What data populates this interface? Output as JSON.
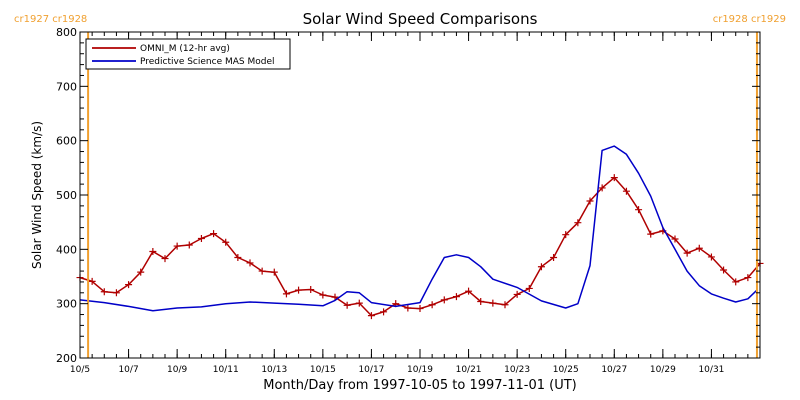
{
  "chart_data": {
    "type": "line",
    "title": "Solar Wind Speed Comparisons",
    "xlabel": "Month/Day from 1997-10-05 to 1997-11-01 (UT)",
    "ylabel": "Solar Wind Speed (km/s)",
    "xlim": [
      "1997-10-05",
      "1997-11-02"
    ],
    "ylim": [
      200,
      800
    ],
    "yticks": [
      200,
      300,
      400,
      500,
      600,
      700,
      800
    ],
    "xticks": [
      {
        "x": "1997-10-05",
        "label": "10/5"
      },
      {
        "x": "1997-10-07",
        "label": "10/7"
      },
      {
        "x": "1997-10-09",
        "label": "10/9"
      },
      {
        "x": "1997-10-11",
        "label": "10/11"
      },
      {
        "x": "1997-10-13",
        "label": "10/13"
      },
      {
        "x": "1997-10-15",
        "label": "10/15"
      },
      {
        "x": "1997-10-17",
        "label": "10/17"
      },
      {
        "x": "1997-10-19",
        "label": "10/19"
      },
      {
        "x": "1997-10-21",
        "label": "10/21"
      },
      {
        "x": "1997-10-23",
        "label": "10/23"
      },
      {
        "x": "1997-10-25",
        "label": "10/25"
      },
      {
        "x": "1997-10-27",
        "label": "10/27"
      },
      {
        "x": "1997-10-29",
        "label": "10/29"
      },
      {
        "x": "1997-10-31",
        "label": "10/31"
      }
    ],
    "legend_position": "top-left",
    "grid": false,
    "carrington_markers": [
      {
        "x": "1997-10-05 08:00",
        "label": "cr1927 cr1928",
        "side": "left"
      },
      {
        "x": "1997-11-01 21:00",
        "label": "cr1928 cr1929",
        "side": "right"
      }
    ],
    "series": [
      {
        "name": "OMNI_M (12-hr avg)",
        "color": "#b00000",
        "marker": "plus",
        "points": [
          [
            "1997-10-05 00:00",
            348
          ],
          [
            "1997-10-05 12:00",
            341
          ],
          [
            "1997-10-06 00:00",
            322
          ],
          [
            "1997-10-06 12:00",
            320
          ],
          [
            "1997-10-07 00:00",
            335
          ],
          [
            "1997-10-07 12:00",
            358
          ],
          [
            "1997-10-08 00:00",
            396
          ],
          [
            "1997-10-08 12:00",
            383
          ],
          [
            "1997-10-09 00:00",
            406
          ],
          [
            "1997-10-09 12:00",
            408
          ],
          [
            "1997-10-10 00:00",
            420
          ],
          [
            "1997-10-10 12:00",
            429
          ],
          [
            "1997-10-11 00:00",
            413
          ],
          [
            "1997-10-11 12:00",
            385
          ],
          [
            "1997-10-12 00:00",
            375
          ],
          [
            "1997-10-12 12:00",
            360
          ],
          [
            "1997-10-13 00:00",
            358
          ],
          [
            "1997-10-13 12:00",
            318
          ],
          [
            "1997-10-14 00:00",
            325
          ],
          [
            "1997-10-14 12:00",
            326
          ],
          [
            "1997-10-15 00:00",
            316
          ],
          [
            "1997-10-15 12:00",
            312
          ],
          [
            "1997-10-16 00:00",
            297
          ],
          [
            "1997-10-16 12:00",
            301
          ],
          [
            "1997-10-17 00:00",
            278
          ],
          [
            "1997-10-17 12:00",
            285
          ],
          [
            "1997-10-18 00:00",
            300
          ],
          [
            "1997-10-18 12:00",
            292
          ],
          [
            "1997-10-19 00:00",
            291
          ],
          [
            "1997-10-19 12:00",
            298
          ],
          [
            "1997-10-20 00:00",
            307
          ],
          [
            "1997-10-20 12:00",
            313
          ],
          [
            "1997-10-21 00:00",
            323
          ],
          [
            "1997-10-21 12:00",
            304
          ],
          [
            "1997-10-22 00:00",
            301
          ],
          [
            "1997-10-22 12:00",
            298
          ],
          [
            "1997-10-23 00:00",
            317
          ],
          [
            "1997-10-23 12:00",
            328
          ],
          [
            "1997-10-24 00:00",
            368
          ],
          [
            "1997-10-24 12:00",
            385
          ],
          [
            "1997-10-25 00:00",
            427
          ],
          [
            "1997-10-25 12:00",
            449
          ],
          [
            "1997-10-26 00:00",
            489
          ],
          [
            "1997-10-26 12:00",
            513
          ],
          [
            "1997-10-27 00:00",
            532
          ],
          [
            "1997-10-27 12:00",
            507
          ],
          [
            "1997-10-28 00:00",
            473
          ],
          [
            "1997-10-28 12:00",
            428
          ],
          [
            "1997-10-29 00:00",
            434
          ],
          [
            "1997-10-29 12:00",
            419
          ],
          [
            "1997-10-30 00:00",
            393
          ],
          [
            "1997-10-30 12:00",
            402
          ],
          [
            "1997-10-31 00:00",
            386
          ],
          [
            "1997-10-31 12:00",
            362
          ],
          [
            "1997-11-01 00:00",
            340
          ],
          [
            "1997-11-01 12:00",
            348
          ],
          [
            "1997-11-02 00:00",
            374
          ]
        ]
      },
      {
        "name": "Predictive Science MAS Model",
        "color": "#0000c8",
        "marker": "none",
        "points": [
          [
            "1997-10-05 00:00",
            307
          ],
          [
            "1997-10-06 00:00",
            302
          ],
          [
            "1997-10-07 00:00",
            295
          ],
          [
            "1997-10-08 00:00",
            287
          ],
          [
            "1997-10-09 00:00",
            292
          ],
          [
            "1997-10-10 00:00",
            294
          ],
          [
            "1997-10-11 00:00",
            300
          ],
          [
            "1997-10-12 00:00",
            303
          ],
          [
            "1997-10-13 00:00",
            301
          ],
          [
            "1997-10-14 00:00",
            299
          ],
          [
            "1997-10-15 00:00",
            296
          ],
          [
            "1997-10-15 12:00",
            306
          ],
          [
            "1997-10-16 00:00",
            322
          ],
          [
            "1997-10-16 12:00",
            320
          ],
          [
            "1997-10-17 00:00",
            302
          ],
          [
            "1997-10-18 00:00",
            295
          ],
          [
            "1997-10-19 00:00",
            302
          ],
          [
            "1997-10-19 12:00",
            345
          ],
          [
            "1997-10-20 00:00",
            385
          ],
          [
            "1997-10-20 12:00",
            390
          ],
          [
            "1997-10-21 00:00",
            385
          ],
          [
            "1997-10-21 12:00",
            368
          ],
          [
            "1997-10-22 00:00",
            345
          ],
          [
            "1997-10-23 00:00",
            330
          ],
          [
            "1997-10-24 00:00",
            305
          ],
          [
            "1997-10-25 00:00",
            292
          ],
          [
            "1997-10-25 12:00",
            300
          ],
          [
            "1997-10-26 00:00",
            370
          ],
          [
            "1997-10-26 12:00",
            582
          ],
          [
            "1997-10-27 00:00",
            590
          ],
          [
            "1997-10-27 12:00",
            575
          ],
          [
            "1997-10-28 00:00",
            540
          ],
          [
            "1997-10-28 12:00",
            498
          ],
          [
            "1997-10-29 00:00",
            440
          ],
          [
            "1997-10-29 12:00",
            400
          ],
          [
            "1997-10-30 00:00",
            360
          ],
          [
            "1997-10-30 12:00",
            333
          ],
          [
            "1997-10-31 00:00",
            318
          ],
          [
            "1997-10-31 12:00",
            310
          ],
          [
            "1997-11-01 00:00",
            303
          ],
          [
            "1997-11-01 12:00",
            309
          ],
          [
            "1997-11-01 21:00",
            325
          ]
        ]
      }
    ]
  }
}
